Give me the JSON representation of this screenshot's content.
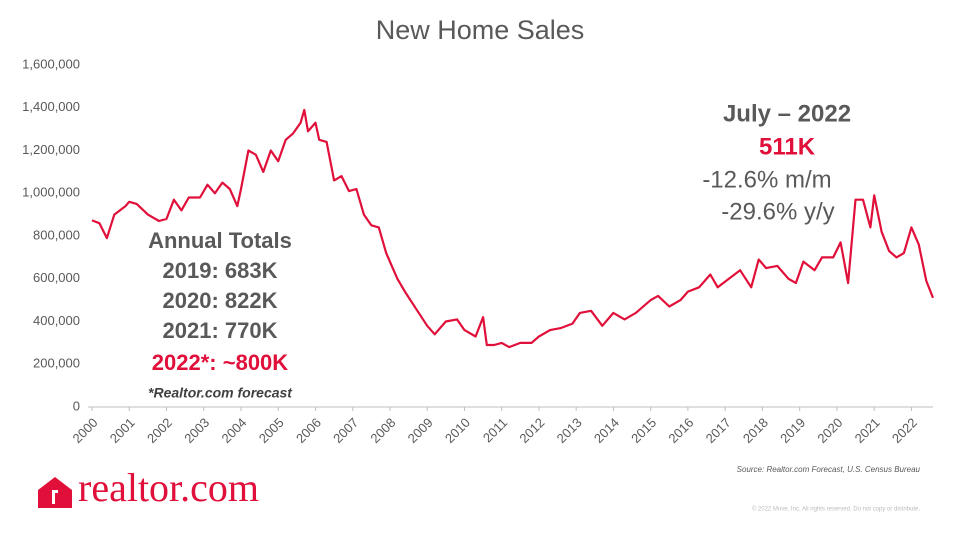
{
  "chart_data": {
    "type": "line",
    "title": "New Home Sales",
    "x": [
      2000.0,
      2000.2,
      2000.4,
      2000.6,
      2000.9,
      2001.0,
      2001.2,
      2001.5,
      2001.8,
      2002.0,
      2002.2,
      2002.4,
      2002.6,
      2002.9,
      2003.1,
      2003.3,
      2003.5,
      2003.7,
      2003.9,
      2004.0,
      2004.2,
      2004.4,
      2004.6,
      2004.8,
      2005.0,
      2005.2,
      2005.4,
      2005.6,
      2005.7,
      2005.8,
      2006.0,
      2006.1,
      2006.3,
      2006.5,
      2006.7,
      2006.9,
      2007.1,
      2007.3,
      2007.5,
      2007.7,
      2007.9,
      2008.2,
      2008.4,
      2008.7,
      2009.0,
      2009.2,
      2009.5,
      2009.8,
      2010.0,
      2010.3,
      2010.5,
      2010.6,
      2010.8,
      2011.0,
      2011.2,
      2011.5,
      2011.8,
      2012.0,
      2012.3,
      2012.6,
      2012.9,
      2013.1,
      2013.4,
      2013.7,
      2014.0,
      2014.3,
      2014.6,
      2015.0,
      2015.2,
      2015.5,
      2015.8,
      2016.0,
      2016.3,
      2016.6,
      2016.8,
      2017.1,
      2017.4,
      2017.7,
      2017.9,
      2018.1,
      2018.4,
      2018.7,
      2018.9,
      2019.1,
      2019.4,
      2019.6,
      2019.9,
      2020.1,
      2020.3,
      2020.5,
      2020.7,
      2020.9,
      2021.0,
      2021.2,
      2021.4,
      2021.6,
      2021.8,
      2022.0,
      2022.2,
      2022.4,
      2022.58
    ],
    "series": [
      {
        "name": "New Home Sales",
        "color": "#e0103a",
        "values": [
          873000,
          860000,
          790000,
          900000,
          940000,
          960000,
          950000,
          900000,
          870000,
          880000,
          970000,
          920000,
          980000,
          980000,
          1040000,
          1000000,
          1050000,
          1020000,
          940000,
          1020000,
          1200000,
          1180000,
          1100000,
          1200000,
          1150000,
          1250000,
          1280000,
          1330000,
          1390000,
          1290000,
          1330000,
          1250000,
          1240000,
          1060000,
          1080000,
          1010000,
          1020000,
          900000,
          850000,
          840000,
          720000,
          600000,
          540000,
          460000,
          380000,
          340000,
          400000,
          410000,
          360000,
          330000,
          420000,
          290000,
          290000,
          300000,
          280000,
          300000,
          300000,
          330000,
          360000,
          370000,
          390000,
          440000,
          450000,
          380000,
          440000,
          410000,
          440000,
          500000,
          520000,
          470000,
          500000,
          540000,
          560000,
          620000,
          560000,
          600000,
          640000,
          560000,
          690000,
          650000,
          660000,
          600000,
          580000,
          680000,
          640000,
          700000,
          700000,
          770000,
          580000,
          970000,
          970000,
          840000,
          990000,
          820000,
          730000,
          700000,
          720000,
          840000,
          760000,
          590000,
          511000
        ]
      }
    ],
    "xlim": [
      2000,
      2022.58
    ],
    "xticks": [
      2000,
      2001,
      2002,
      2003,
      2004,
      2005,
      2006,
      2007,
      2008,
      2009,
      2010,
      2011,
      2012,
      2013,
      2014,
      2015,
      2016,
      2017,
      2018,
      2019,
      2020,
      2021,
      2022
    ],
    "ylim": [
      0,
      1600000
    ],
    "yticks": [
      0,
      {
        "value": 200000,
        "label": "200,000"
      },
      {
        "value": 400000,
        "label": "400,000"
      },
      {
        "value": 600000,
        "label": "600,000"
      },
      {
        "value": 800000,
        "label": "800,000"
      },
      {
        "value": 1000000,
        "label": "1,000,000"
      },
      {
        "value": 1200000,
        "label": "1,200,000"
      },
      {
        "value": 1400000,
        "label": "1,400,000"
      },
      {
        "value": 1600000,
        "label": "1,600,000"
      }
    ],
    "grid": false,
    "annotations": [
      {
        "text": "Annual Totals",
        "color": "#595959"
      },
      {
        "text": "2019: 683K",
        "color": "#595959"
      },
      {
        "text": "2020: 822K",
        "color": "#595959"
      },
      {
        "text": "2021: 770K",
        "color": "#595959"
      },
      {
        "text": "2022*: ~800K",
        "color": "#e0103a"
      },
      {
        "text": "*Realtor.com forecast",
        "color": "#404040"
      },
      {
        "text": "July – 2022",
        "color": "#595959"
      },
      {
        "text": "511K",
        "color": "#e0103a"
      },
      {
        "text": "-12.6%  m/m",
        "color": "#595959"
      },
      {
        "text": "-29.6%  y/y",
        "color": "#595959"
      }
    ],
    "source": "Source: Realtor.com Forecast, U.S. Census Bureau",
    "copyright": "© 2022 Move, Inc. All rights reserved. Do not copy or distribute.",
    "logo": "realtor.com"
  }
}
